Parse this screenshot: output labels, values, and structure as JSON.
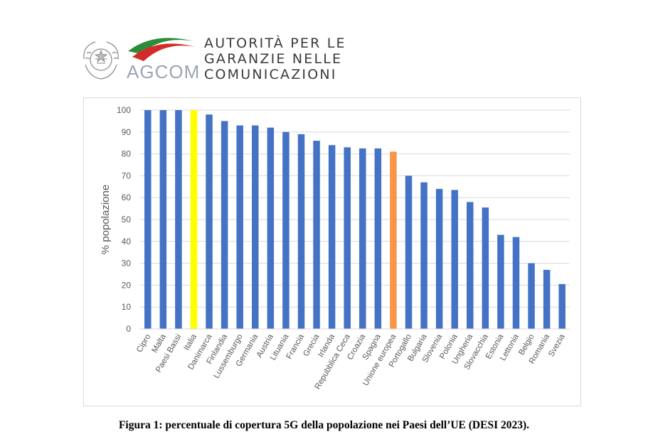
{
  "header": {
    "logo_text": "AGCOM",
    "org_lines": [
      "AUTORITÀ PER LE",
      "GARANZIE NELLE",
      "COMUNICAZIONI"
    ],
    "emblem_icon": "italian-republic-emblem-icon",
    "swoosh_icon": "agcom-tricolor-swoosh-icon",
    "colors": {
      "swoosh_green": "#2e8b3a",
      "swoosh_red": "#d42a2a",
      "logo_grey": "#9aa6b3"
    }
  },
  "chart_data": {
    "type": "bar",
    "title": "",
    "xlabel": "",
    "ylabel": "% popolazione",
    "ylim": [
      0,
      100
    ],
    "yticks": [
      0,
      10,
      20,
      30,
      40,
      50,
      60,
      70,
      80,
      90,
      100
    ],
    "grid": true,
    "legend": "none",
    "categories": [
      "Cipro",
      "Malta",
      "Paesi Bassi",
      "Italia",
      "Danimarca",
      "Finlandia",
      "Lussemburgo",
      "Germania",
      "Austria",
      "Lituania",
      "Francia",
      "Grecia",
      "Irlanda",
      "Repubblica Ceca",
      "Croazia",
      "Spagna",
      "Unione europea",
      "Portogallo",
      "Bulgaria",
      "Slovenia",
      "Polonia",
      "Ungheria",
      "Slovacchia",
      "Estonia",
      "Lettonia",
      "Belgio",
      "Romania",
      "Svezia"
    ],
    "values": [
      100,
      100,
      100,
      100,
      98,
      95,
      93,
      93,
      92,
      90,
      89,
      86,
      84,
      83,
      82.5,
      82.5,
      81,
      70,
      67,
      64,
      63.5,
      58,
      55.5,
      43,
      42,
      30,
      27,
      20.5
    ],
    "colors": {
      "default": "#4472c4",
      "highlight": {
        "Italia": "#ffff00",
        "Unione europea": "#f79646"
      }
    }
  },
  "caption": "Figura 1: percentuale di copertura 5G della popolazione nei Paesi dell’UE (DESI 2023)."
}
